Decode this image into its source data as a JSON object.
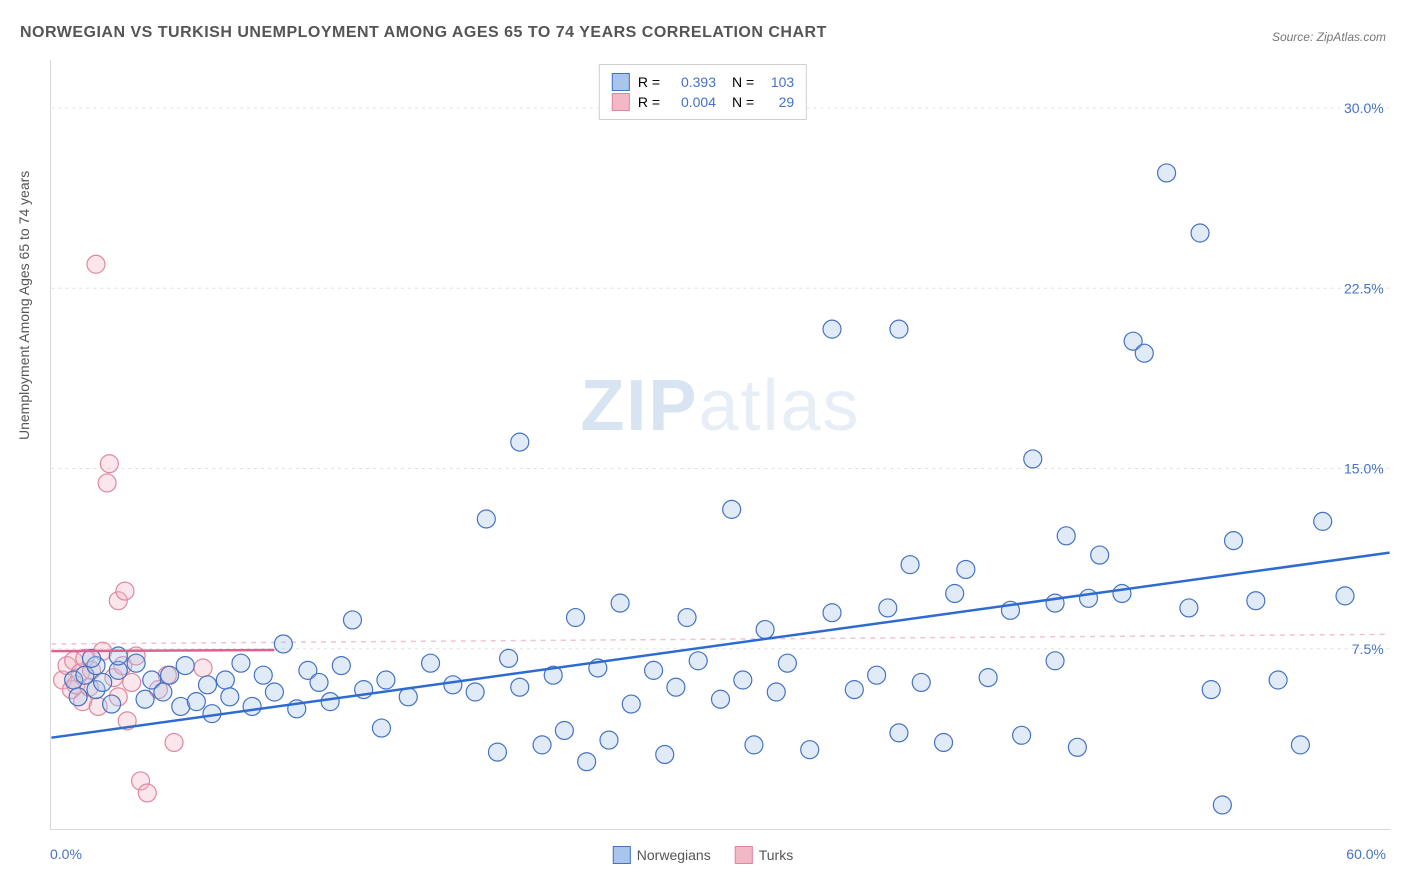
{
  "title": "NORWEGIAN VS TURKISH UNEMPLOYMENT AMONG AGES 65 TO 74 YEARS CORRELATION CHART",
  "source_prefix": "Source: ",
  "source_name": "ZipAtlas.com",
  "y_axis_label": "Unemployment Among Ages 65 to 74 years",
  "watermark_zip": "ZIP",
  "watermark_atlas": "atlas",
  "chart": {
    "type": "scatter",
    "xlim": [
      0,
      60
    ],
    "ylim": [
      0,
      32
    ],
    "y_ticks": [
      7.5,
      15.0,
      22.5,
      30.0
    ],
    "y_tick_labels": [
      "7.5%",
      "15.0%",
      "22.5%",
      "30.0%"
    ],
    "x_tick_left": "0.0%",
    "x_tick_right": "60.0%",
    "x_minor_ticks": [
      14,
      28,
      42
    ],
    "background_color": "#ffffff",
    "grid_color": "#e0e0e0",
    "point_radius": 9,
    "point_fill_opacity": 0.35,
    "point_stroke_width": 1.2,
    "trend_line_width": 2.5,
    "trend_dash_width": 1.5,
    "series": {
      "norwegians": {
        "label": "Norwegians",
        "fill": "#a9c5ec",
        "stroke": "#4472c4",
        "trend_color": "#2e6bd0",
        "trend": {
          "x1": 0,
          "y1": 3.8,
          "x2": 60,
          "y2": 11.5
        },
        "dashed_trend": {
          "x1": 0,
          "y1": 7.7,
          "x2": 60,
          "y2": 8.1
        },
        "R": "0.393",
        "N": "103",
        "points": [
          [
            1,
            6.2
          ],
          [
            1.5,
            6.4
          ],
          [
            2,
            6.8
          ],
          [
            2,
            5.8
          ],
          [
            1.2,
            5.5
          ],
          [
            1.8,
            7.1
          ],
          [
            2.3,
            6.1
          ],
          [
            2.7,
            5.2
          ],
          [
            3,
            6.6
          ],
          [
            3,
            7.2
          ],
          [
            3.8,
            6.9
          ],
          [
            4.2,
            5.4
          ],
          [
            4.5,
            6.2
          ],
          [
            5,
            5.7
          ],
          [
            5.3,
            6.4
          ],
          [
            5.8,
            5.1
          ],
          [
            6,
            6.8
          ],
          [
            6.5,
            5.3
          ],
          [
            7,
            6.0
          ],
          [
            7.2,
            4.8
          ],
          [
            7.8,
            6.2
          ],
          [
            8,
            5.5
          ],
          [
            8.5,
            6.9
          ],
          [
            9,
            5.1
          ],
          [
            9.5,
            6.4
          ],
          [
            10,
            5.7
          ],
          [
            10.4,
            7.7
          ],
          [
            11,
            5.0
          ],
          [
            11.5,
            6.6
          ],
          [
            12,
            6.1
          ],
          [
            12.5,
            5.3
          ],
          [
            13,
            6.8
          ],
          [
            13.5,
            8.7
          ],
          [
            14,
            5.8
          ],
          [
            14.8,
            4.2
          ],
          [
            15,
            6.2
          ],
          [
            16,
            5.5
          ],
          [
            17,
            6.9
          ],
          [
            18,
            6.0
          ],
          [
            19,
            5.7
          ],
          [
            19.5,
            12.9
          ],
          [
            20,
            3.2
          ],
          [
            20.5,
            7.1
          ],
          [
            21,
            5.9
          ],
          [
            21,
            16.1
          ],
          [
            22,
            3.5
          ],
          [
            22.5,
            6.4
          ],
          [
            23,
            4.1
          ],
          [
            23.5,
            8.8
          ],
          [
            24,
            2.8
          ],
          [
            24.5,
            6.7
          ],
          [
            25,
            3.7
          ],
          [
            25.5,
            9.4
          ],
          [
            26,
            5.2
          ],
          [
            27,
            6.6
          ],
          [
            27.5,
            3.1
          ],
          [
            28,
            5.9
          ],
          [
            28.5,
            8.8
          ],
          [
            29,
            7.0
          ],
          [
            30,
            5.4
          ],
          [
            30.5,
            13.3
          ],
          [
            31,
            6.2
          ],
          [
            31.5,
            3.5
          ],
          [
            32,
            8.3
          ],
          [
            32.5,
            5.7
          ],
          [
            33,
            6.9
          ],
          [
            34,
            3.3
          ],
          [
            35,
            9.0
          ],
          [
            35,
            20.8
          ],
          [
            36,
            5.8
          ],
          [
            37,
            6.4
          ],
          [
            37.5,
            9.2
          ],
          [
            38,
            4.0
          ],
          [
            38,
            20.8
          ],
          [
            38.5,
            11.0
          ],
          [
            39,
            6.1
          ],
          [
            40,
            3.6
          ],
          [
            40.5,
            9.8
          ],
          [
            41,
            10.8
          ],
          [
            42,
            6.3
          ],
          [
            43,
            9.1
          ],
          [
            43.5,
            3.9
          ],
          [
            44,
            15.4
          ],
          [
            45,
            9.4
          ],
          [
            45,
            7.0
          ],
          [
            45.5,
            12.2
          ],
          [
            46,
            3.4
          ],
          [
            46.5,
            9.6
          ],
          [
            47,
            11.4
          ],
          [
            48,
            9.8
          ],
          [
            48.5,
            20.3
          ],
          [
            49,
            19.8
          ],
          [
            50,
            27.3
          ],
          [
            51,
            9.2
          ],
          [
            51.5,
            24.8
          ],
          [
            52,
            5.8
          ],
          [
            52.5,
            1.0
          ],
          [
            53,
            12.0
          ],
          [
            54,
            9.5
          ],
          [
            55,
            6.2
          ],
          [
            56,
            3.5
          ],
          [
            57,
            12.8
          ],
          [
            58,
            9.7
          ]
        ]
      },
      "turks": {
        "label": "Turks",
        "fill": "#f2b8c6",
        "stroke": "#e087a0",
        "trend_color": "#e06090",
        "trend": {
          "x1": 0,
          "y1": 7.4,
          "x2": 10,
          "y2": 7.45
        },
        "R": "0.004",
        "N": "29",
        "points": [
          [
            0.5,
            6.2
          ],
          [
            0.7,
            6.8
          ],
          [
            0.9,
            5.8
          ],
          [
            1.0,
            7.0
          ],
          [
            1.1,
            6.0
          ],
          [
            1.3,
            6.5
          ],
          [
            1.4,
            5.3
          ],
          [
            1.5,
            7.1
          ],
          [
            1.7,
            5.9
          ],
          [
            1.8,
            6.6
          ],
          [
            2.0,
            23.5
          ],
          [
            2.1,
            5.1
          ],
          [
            2.3,
            7.4
          ],
          [
            2.5,
            14.4
          ],
          [
            2.6,
            15.2
          ],
          [
            2.8,
            6.3
          ],
          [
            3.0,
            5.5
          ],
          [
            3.0,
            9.5
          ],
          [
            3.2,
            6.8
          ],
          [
            3.3,
            9.9
          ],
          [
            3.4,
            4.5
          ],
          [
            3.6,
            6.1
          ],
          [
            3.8,
            7.2
          ],
          [
            4.0,
            2.0
          ],
          [
            4.3,
            1.5
          ],
          [
            4.8,
            5.8
          ],
          [
            5.2,
            6.4
          ],
          [
            5.5,
            3.6
          ],
          [
            6.8,
            6.7
          ]
        ]
      }
    }
  },
  "legend_top": {
    "r_label": "R =",
    "n_label": "N ="
  }
}
